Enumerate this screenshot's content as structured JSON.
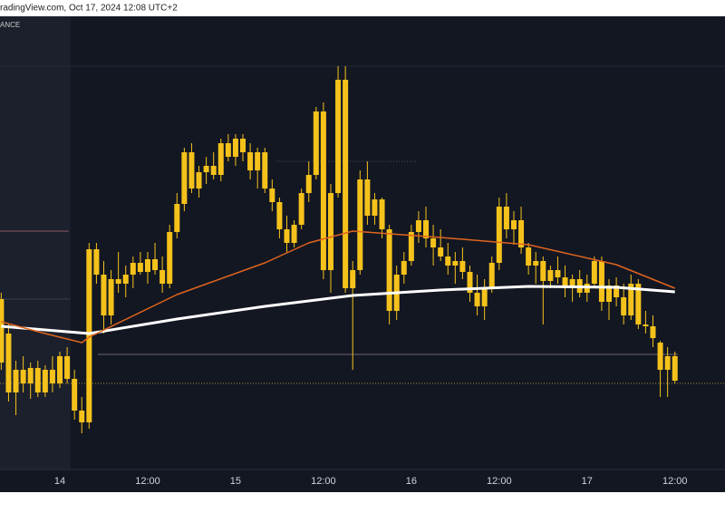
{
  "header": {
    "text": "radingView.com, Oct 17, 2024 12:08 UTC+2"
  },
  "chart_data": {
    "type": "candlestick",
    "source": "ANCE",
    "color": "#f5c21b",
    "xlim": [
      -0.17,
      98.84
    ],
    "ylim": [
      0,
      500
    ],
    "xticks": [
      {
        "value": 8,
        "label": "14"
      },
      {
        "value": 20,
        "label": "12:00"
      },
      {
        "value": 32,
        "label": "15"
      },
      {
        "value": 44,
        "label": "12:00"
      },
      {
        "value": 56,
        "label": "16"
      },
      {
        "value": 68,
        "label": "12:00"
      },
      {
        "value": 80,
        "label": "17"
      },
      {
        "value": 92,
        "label": "12:00"
      }
    ],
    "open": [
      118,
      150,
      85,
      110,
      95,
      112,
      85,
      110,
      95,
      125,
      100,
      65,
      52,
      243,
      215,
      170,
      210,
      205,
      215,
      228,
      218,
      232,
      220,
      205,
      262,
      293,
      350,
      310,
      328,
      335,
      325,
      360,
      345,
      365,
      350,
      330,
      350,
      310,
      295,
      265,
      250,
      270,
      305,
      325,
      395,
      220,
      305,
      430,
      200,
      220,
      320,
      280,
      298,
      265,
      175,
      215,
      230,
      262,
      275,
      255,
      245,
      235,
      225,
      230,
      218,
      195,
      180,
      200,
      228,
      290,
      265,
      275,
      245,
      225,
      230,
      208,
      220,
      212,
      200,
      210,
      195,
      205,
      230,
      185,
      203,
      190,
      170,
      205,
      160,
      158,
      140,
      110,
      125
    ],
    "high": [
      195,
      160,
      120,
      125,
      118,
      120,
      115,
      125,
      130,
      135,
      110,
      80,
      250,
      250,
      230,
      220,
      240,
      225,
      235,
      240,
      240,
      250,
      235,
      270,
      305,
      355,
      360,
      335,
      345,
      350,
      365,
      370,
      370,
      370,
      360,
      355,
      355,
      320,
      300,
      280,
      275,
      310,
      340,
      400,
      405,
      315,
      445,
      445,
      230,
      330,
      340,
      305,
      300,
      270,
      225,
      240,
      270,
      285,
      290,
      270,
      265,
      250,
      240,
      245,
      225,
      215,
      210,
      235,
      300,
      305,
      285,
      290,
      250,
      240,
      235,
      225,
      235,
      225,
      215,
      220,
      215,
      235,
      235,
      210,
      212,
      205,
      215,
      210,
      175,
      170,
      142,
      135,
      130
    ],
    "low": [
      110,
      75,
      60,
      85,
      78,
      80,
      80,
      85,
      90,
      95,
      55,
      40,
      45,
      205,
      150,
      160,
      195,
      190,
      200,
      215,
      205,
      215,
      195,
      200,
      255,
      285,
      305,
      300,
      315,
      320,
      318,
      340,
      335,
      340,
      320,
      310,
      305,
      285,
      255,
      240,
      245,
      265,
      295,
      320,
      210,
      195,
      300,
      195,
      110,
      215,
      270,
      270,
      255,
      160,
      165,
      205,
      225,
      250,
      245,
      225,
      230,
      215,
      205,
      210,
      185,
      170,
      165,
      195,
      220,
      255,
      248,
      238,
      215,
      205,
      160,
      200,
      205,
      190,
      185,
      190,
      185,
      200,
      175,
      165,
      180,
      160,
      165,
      155,
      150,
      135,
      80,
      80,
      95
    ],
    "close": [
      188,
      85,
      110,
      95,
      112,
      85,
      110,
      95,
      125,
      100,
      65,
      52,
      243,
      215,
      170,
      210,
      205,
      215,
      228,
      218,
      232,
      220,
      205,
      262,
      293,
      350,
      310,
      328,
      335,
      325,
      360,
      345,
      365,
      350,
      330,
      350,
      310,
      295,
      265,
      250,
      270,
      305,
      325,
      395,
      220,
      305,
      430,
      200,
      220,
      320,
      280,
      298,
      265,
      175,
      215,
      230,
      262,
      275,
      255,
      245,
      235,
      225,
      230,
      218,
      195,
      180,
      200,
      228,
      290,
      265,
      275,
      245,
      225,
      230,
      208,
      220,
      212,
      200,
      210,
      195,
      205,
      230,
      185,
      203,
      190,
      170,
      205,
      160,
      158,
      145,
      110,
      125,
      98
    ],
    "series": [
      {
        "color": "#ffffff",
        "x": [
          0,
          12,
          24,
          36,
          48,
          60,
          72,
          84,
          92
        ],
        "values": [
          158,
          150,
          166,
          180,
          192,
          198,
          202,
          201,
          196
        ]
      },
      {
        "color": "#e0651e",
        "x": [
          0,
          6,
          11,
          12,
          24,
          36,
          42,
          48,
          60,
          72,
          84,
          92
        ],
        "values": [
          163,
          150,
          140,
          146,
          193,
          228,
          250,
          263,
          256,
          248,
          226,
          200
        ]
      }
    ],
    "levels": [
      {
        "value": 263,
        "x": [
          -0.17,
          9.2
        ],
        "color": "#8a5a66",
        "dash": false
      },
      {
        "value": 188,
        "x": [
          -0.17,
          9.4
        ],
        "color": "#3a3e4a",
        "dash": false
      },
      {
        "value": 127,
        "x": [
          13.2,
          92.4
        ],
        "color": "#6f6470",
        "dash": false
      },
      {
        "value": 95,
        "x": [
          -0.17,
          98.84
        ],
        "color": "#a08a3a",
        "dash": true
      },
      {
        "value": 340,
        "x": [
          37.6,
          56.8
        ],
        "color": "#4a4e5a",
        "dash": true
      },
      {
        "value": 445,
        "x": [
          -0.17,
          98.84
        ],
        "color": "#262a36",
        "dash": false
      }
    ]
  }
}
